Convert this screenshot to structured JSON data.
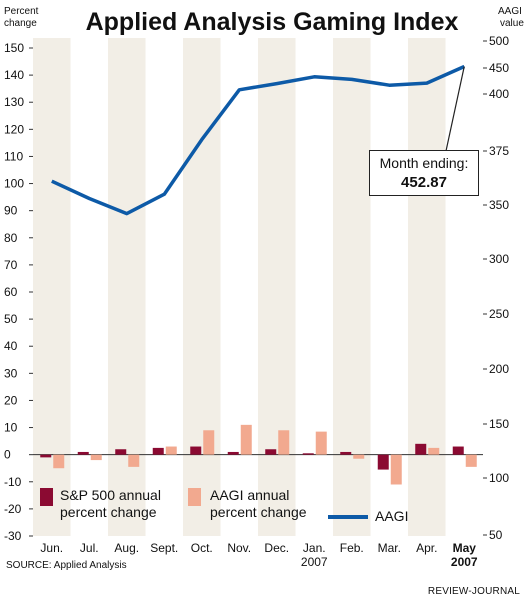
{
  "chart_data": {
    "type": "bar+line",
    "title": "Applied Analysis Gaming Index",
    "categories": [
      "Jun.",
      "Jul.",
      "Aug.",
      "Sept.",
      "Oct.",
      "Nov.",
      "Dec.",
      "Jan.",
      "Feb.",
      "Mar.",
      "Apr.",
      "May"
    ],
    "category_sublabels": {
      "Jan.": "2007",
      "May": "2007"
    },
    "left_axis": {
      "label_line1": "Percent",
      "label_line2": "change",
      "ylim": [
        -30,
        155
      ],
      "ticks": [
        -30,
        -20,
        -10,
        0,
        10,
        20,
        30,
        40,
        50,
        60,
        70,
        80,
        90,
        100,
        110,
        120,
        130,
        140,
        150
      ]
    },
    "right_axis": {
      "label_line1": "AAGI",
      "label_line2": "value",
      "ylim": [
        50,
        500
      ],
      "ticks": [
        50,
        100,
        150,
        200,
        250,
        300,
        350,
        375,
        400,
        450,
        500
      ]
    },
    "series": [
      {
        "name": "S&P 500 annual percent change",
        "kind": "bar",
        "axis": "left",
        "color": "#8b0a32",
        "values": [
          -1,
          1,
          2,
          2.5,
          3,
          1,
          2,
          0.5,
          1,
          -5.5,
          4,
          3
        ]
      },
      {
        "name": "AAGI annual percent change",
        "kind": "bar",
        "axis": "left",
        "color": "#f2a98f",
        "values": [
          -5,
          -2,
          -4.5,
          3,
          9,
          11,
          9,
          8.5,
          -1.5,
          -11,
          2.5,
          -4.5
        ]
      },
      {
        "name": "AAGI",
        "kind": "line",
        "axis": "right",
        "color": "#0d5aa7",
        "values": [
          361,
          353,
          342,
          355,
          380,
          408,
          420,
          433,
          428,
          417,
          421,
          452.87
        ]
      }
    ],
    "legend": [
      {
        "line1": "S&P 500 annual",
        "line2": "percent change"
      },
      {
        "line1": "AAGI annual",
        "line2": "percent change"
      },
      {
        "line1": "AAGI",
        "line2": ""
      }
    ],
    "annotation": {
      "line1": "Month ending:",
      "line2": "452.87"
    }
  },
  "source": "SOURCE: Applied Analysis",
  "credit": "REVIEW-JOURNAL",
  "colors": {
    "band": "#f2eee6",
    "line": "#0d5aa7",
    "sp_bar": "#8b0a32",
    "aagi_bar": "#f2a98f"
  }
}
